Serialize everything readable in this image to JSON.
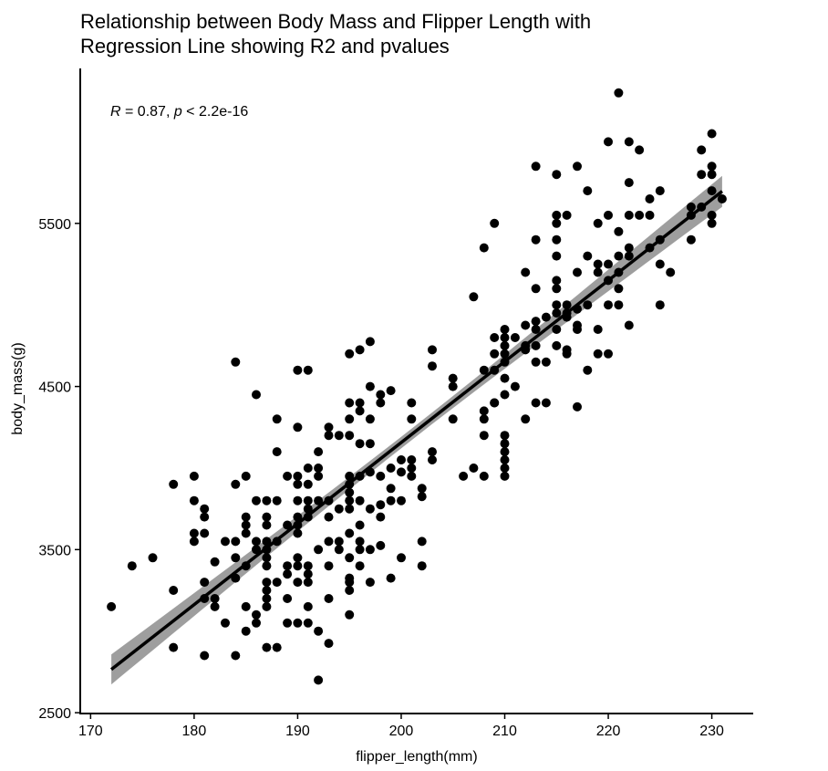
{
  "chart_data": {
    "type": "scatter",
    "title_lines": [
      "Relationship between Body Mass and Flipper Length with",
      "Regression Line showing R2 and pvalues"
    ],
    "xlabel": "flipper_length(mm)",
    "ylabel": "body_mass(g)",
    "xlim": [
      169,
      234
    ],
    "ylim": [
      2495,
      6450
    ],
    "x_ticks": [
      170,
      180,
      190,
      200,
      210,
      220,
      230
    ],
    "y_ticks": [
      2500,
      3500,
      4500,
      5500
    ],
    "grid": false,
    "annotation": {
      "r_symbol": "R",
      "r_text": " = 0.87, ",
      "p_symbol": "p",
      "p_text": " < 2.2e-16"
    },
    "regression": {
      "x_start": 172,
      "x_end": 231,
      "intercept": -5780.83,
      "slope": 49.686,
      "band_halfwidth_ends": 95,
      "band_halfwidth_mid": 35,
      "x_mean": 200.9
    },
    "colors": {
      "points": "#000000",
      "line": "#000000",
      "band": "#999999"
    },
    "points": [
      [
        172,
        3150
      ],
      [
        174,
        3400
      ],
      [
        176,
        3450
      ],
      [
        178,
        3900
      ],
      [
        178,
        3250
      ],
      [
        178,
        2900
      ],
      [
        180,
        3950
      ],
      [
        180,
        3800
      ],
      [
        180,
        3600
      ],
      [
        180,
        3550
      ],
      [
        181,
        3750
      ],
      [
        181,
        3700
      ],
      [
        181,
        3600
      ],
      [
        181,
        3300
      ],
      [
        181,
        3200
      ],
      [
        181,
        2850
      ],
      [
        182,
        3425
      ],
      [
        182,
        3200
      ],
      [
        182,
        3150
      ],
      [
        183,
        3550
      ],
      [
        183,
        3050
      ],
      [
        184,
        4650
      ],
      [
        184,
        3900
      ],
      [
        184,
        3550
      ],
      [
        184,
        3450
      ],
      [
        184,
        3325
      ],
      [
        184,
        2850
      ],
      [
        185,
        3950
      ],
      [
        185,
        3700
      ],
      [
        185,
        3650
      ],
      [
        185,
        3600
      ],
      [
        185,
        3400
      ],
      [
        185,
        3150
      ],
      [
        185,
        3000
      ],
      [
        186,
        4450
      ],
      [
        186,
        3800
      ],
      [
        186,
        3550
      ],
      [
        186,
        3500
      ],
      [
        186,
        3100
      ],
      [
        186,
        3050
      ],
      [
        187,
        3800
      ],
      [
        187,
        3700
      ],
      [
        187,
        3650
      ],
      [
        187,
        3550
      ],
      [
        187,
        3500
      ],
      [
        187,
        3450
      ],
      [
        187,
        3400
      ],
      [
        187,
        3300
      ],
      [
        187,
        3250
      ],
      [
        187,
        3200
      ],
      [
        187,
        3150
      ],
      [
        187,
        2900
      ],
      [
        188,
        4300
      ],
      [
        188,
        4100
      ],
      [
        188,
        3800
      ],
      [
        188,
        3550
      ],
      [
        188,
        3300
      ],
      [
        188,
        2900
      ],
      [
        189,
        3950
      ],
      [
        189,
        3650
      ],
      [
        189,
        3400
      ],
      [
        189,
        3350
      ],
      [
        189,
        3200
      ],
      [
        189,
        3050
      ],
      [
        190,
        4600
      ],
      [
        190,
        4250
      ],
      [
        190,
        3950
      ],
      [
        190,
        3900
      ],
      [
        190,
        3800
      ],
      [
        190,
        3700
      ],
      [
        190,
        3650
      ],
      [
        190,
        3600
      ],
      [
        190,
        3450
      ],
      [
        190,
        3400
      ],
      [
        190,
        3300
      ],
      [
        190,
        3050
      ],
      [
        191,
        4600
      ],
      [
        191,
        4000
      ],
      [
        191,
        3900
      ],
      [
        191,
        3800
      ],
      [
        191,
        3750
      ],
      [
        191,
        3700
      ],
      [
        191,
        3400
      ],
      [
        191,
        3350
      ],
      [
        191,
        3300
      ],
      [
        191,
        3150
      ],
      [
        191,
        3050
      ],
      [
        192,
        4100
      ],
      [
        192,
        4000
      ],
      [
        192,
        3950
      ],
      [
        192,
        3800
      ],
      [
        192,
        3500
      ],
      [
        192,
        3000
      ],
      [
        192,
        2700
      ],
      [
        193,
        4250
      ],
      [
        193,
        4200
      ],
      [
        193,
        3800
      ],
      [
        193,
        3700
      ],
      [
        193,
        3550
      ],
      [
        193,
        3400
      ],
      [
        193,
        3200
      ],
      [
        193,
        2925
      ],
      [
        194,
        4200
      ],
      [
        194,
        3750
      ],
      [
        194,
        3550
      ],
      [
        194,
        3500
      ],
      [
        195,
        4700
      ],
      [
        195,
        4400
      ],
      [
        195,
        4300
      ],
      [
        195,
        4200
      ],
      [
        195,
        3950
      ],
      [
        195,
        3900
      ],
      [
        195,
        3850
      ],
      [
        195,
        3800
      ],
      [
        195,
        3750
      ],
      [
        195,
        3600
      ],
      [
        195,
        3450
      ],
      [
        195,
        3325
      ],
      [
        195,
        3300
      ],
      [
        195,
        3250
      ],
      [
        195,
        3100
      ],
      [
        196,
        4725
      ],
      [
        196,
        4400
      ],
      [
        196,
        4350
      ],
      [
        196,
        4150
      ],
      [
        196,
        3950
      ],
      [
        196,
        3800
      ],
      [
        196,
        3650
      ],
      [
        196,
        3550
      ],
      [
        196,
        3500
      ],
      [
        196,
        3400
      ],
      [
        197,
        4775
      ],
      [
        197,
        4500
      ],
      [
        197,
        4300
      ],
      [
        197,
        4150
      ],
      [
        197,
        3975
      ],
      [
        197,
        3750
      ],
      [
        197,
        3500
      ],
      [
        197,
        3300
      ],
      [
        198,
        4450
      ],
      [
        198,
        4400
      ],
      [
        198,
        3950
      ],
      [
        198,
        3775
      ],
      [
        198,
        3700
      ],
      [
        198,
        3525
      ],
      [
        199,
        4475
      ],
      [
        199,
        4000
      ],
      [
        199,
        3875
      ],
      [
        199,
        3800
      ],
      [
        199,
        3325
      ],
      [
        200,
        4050
      ],
      [
        200,
        3975
      ],
      [
        200,
        3800
      ],
      [
        200,
        3450
      ],
      [
        201,
        4400
      ],
      [
        201,
        4300
      ],
      [
        201,
        4050
      ],
      [
        201,
        4000
      ],
      [
        201,
        3950
      ],
      [
        202,
        3875
      ],
      [
        202,
        3825
      ],
      [
        202,
        3550
      ],
      [
        202,
        3400
      ],
      [
        203,
        4725
      ],
      [
        203,
        4625
      ],
      [
        203,
        4100
      ],
      [
        203,
        4050
      ],
      [
        205,
        4550
      ],
      [
        205,
        4500
      ],
      [
        205,
        4300
      ],
      [
        206,
        3950
      ],
      [
        207,
        5050
      ],
      [
        207,
        4000
      ],
      [
        208,
        5350
      ],
      [
        208,
        4600
      ],
      [
        208,
        4350
      ],
      [
        208,
        4300
      ],
      [
        208,
        4200
      ],
      [
        208,
        3950
      ],
      [
        209,
        5500
      ],
      [
        209,
        4800
      ],
      [
        209,
        4700
      ],
      [
        209,
        4600
      ],
      [
        209,
        4400
      ],
      [
        209,
        4400
      ],
      [
        210,
        4850
      ],
      [
        210,
        4800
      ],
      [
        210,
        4750
      ],
      [
        210,
        4700
      ],
      [
        210,
        4650
      ],
      [
        210,
        4550
      ],
      [
        210,
        4450
      ],
      [
        210,
        4200
      ],
      [
        210,
        4150
      ],
      [
        210,
        4100
      ],
      [
        210,
        4050
      ],
      [
        210,
        4000
      ],
      [
        210,
        3950
      ],
      [
        211,
        4800
      ],
      [
        211,
        4500
      ],
      [
        212,
        5200
      ],
      [
        212,
        4875
      ],
      [
        212,
        4750
      ],
      [
        212,
        4725
      ],
      [
        212,
        4300
      ],
      [
        213,
        5850
      ],
      [
        213,
        5400
      ],
      [
        213,
        5100
      ],
      [
        213,
        4900
      ],
      [
        213,
        4850
      ],
      [
        213,
        4750
      ],
      [
        213,
        4650
      ],
      [
        213,
        4400
      ],
      [
        214,
        4925
      ],
      [
        214,
        4650
      ],
      [
        214,
        4400
      ],
      [
        215,
        5800
      ],
      [
        215,
        5550
      ],
      [
        215,
        5500
      ],
      [
        215,
        5400
      ],
      [
        215,
        5300
      ],
      [
        215,
        5150
      ],
      [
        215,
        5100
      ],
      [
        215,
        5000
      ],
      [
        215,
        4950
      ],
      [
        215,
        4850
      ],
      [
        215,
        4750
      ],
      [
        216,
        5550
      ],
      [
        216,
        5000
      ],
      [
        216,
        4950
      ],
      [
        216,
        4925
      ],
      [
        216,
        4725
      ],
      [
        216,
        4700
      ],
      [
        217,
        5850
      ],
      [
        217,
        5200
      ],
      [
        217,
        4975
      ],
      [
        217,
        4875
      ],
      [
        217,
        4850
      ],
      [
        217,
        4375
      ],
      [
        218,
        5700
      ],
      [
        218,
        5300
      ],
      [
        218,
        5000
      ],
      [
        218,
        4600
      ],
      [
        219,
        5500
      ],
      [
        219,
        5250
      ],
      [
        219,
        5200
      ],
      [
        219,
        4850
      ],
      [
        219,
        4700
      ],
      [
        220,
        6000
      ],
      [
        220,
        5550
      ],
      [
        220,
        5250
      ],
      [
        220,
        5150
      ],
      [
        220,
        5000
      ],
      [
        220,
        4700
      ],
      [
        221,
        6300
      ],
      [
        221,
        5450
      ],
      [
        221,
        5300
      ],
      [
        221,
        5200
      ],
      [
        221,
        5100
      ],
      [
        221,
        5000
      ],
      [
        222,
        6000
      ],
      [
        222,
        5750
      ],
      [
        222,
        5550
      ],
      [
        222,
        5350
      ],
      [
        222,
        5300
      ],
      [
        222,
        4875
      ],
      [
        223,
        5950
      ],
      [
        223,
        5550
      ],
      [
        224,
        5650
      ],
      [
        224,
        5550
      ],
      [
        224,
        5350
      ],
      [
        225,
        5700
      ],
      [
        225,
        5400
      ],
      [
        225,
        5250
      ],
      [
        225,
        5000
      ],
      [
        226,
        5200
      ],
      [
        228,
        5600
      ],
      [
        228,
        5550
      ],
      [
        228,
        5400
      ],
      [
        229,
        5950
      ],
      [
        229,
        5800
      ],
      [
        229,
        5600
      ],
      [
        230,
        6050
      ],
      [
        230,
        5850
      ],
      [
        230,
        5800
      ],
      [
        230,
        5700
      ],
      [
        230,
        5550
      ],
      [
        230,
        5500
      ],
      [
        231,
        5650
      ]
    ]
  }
}
